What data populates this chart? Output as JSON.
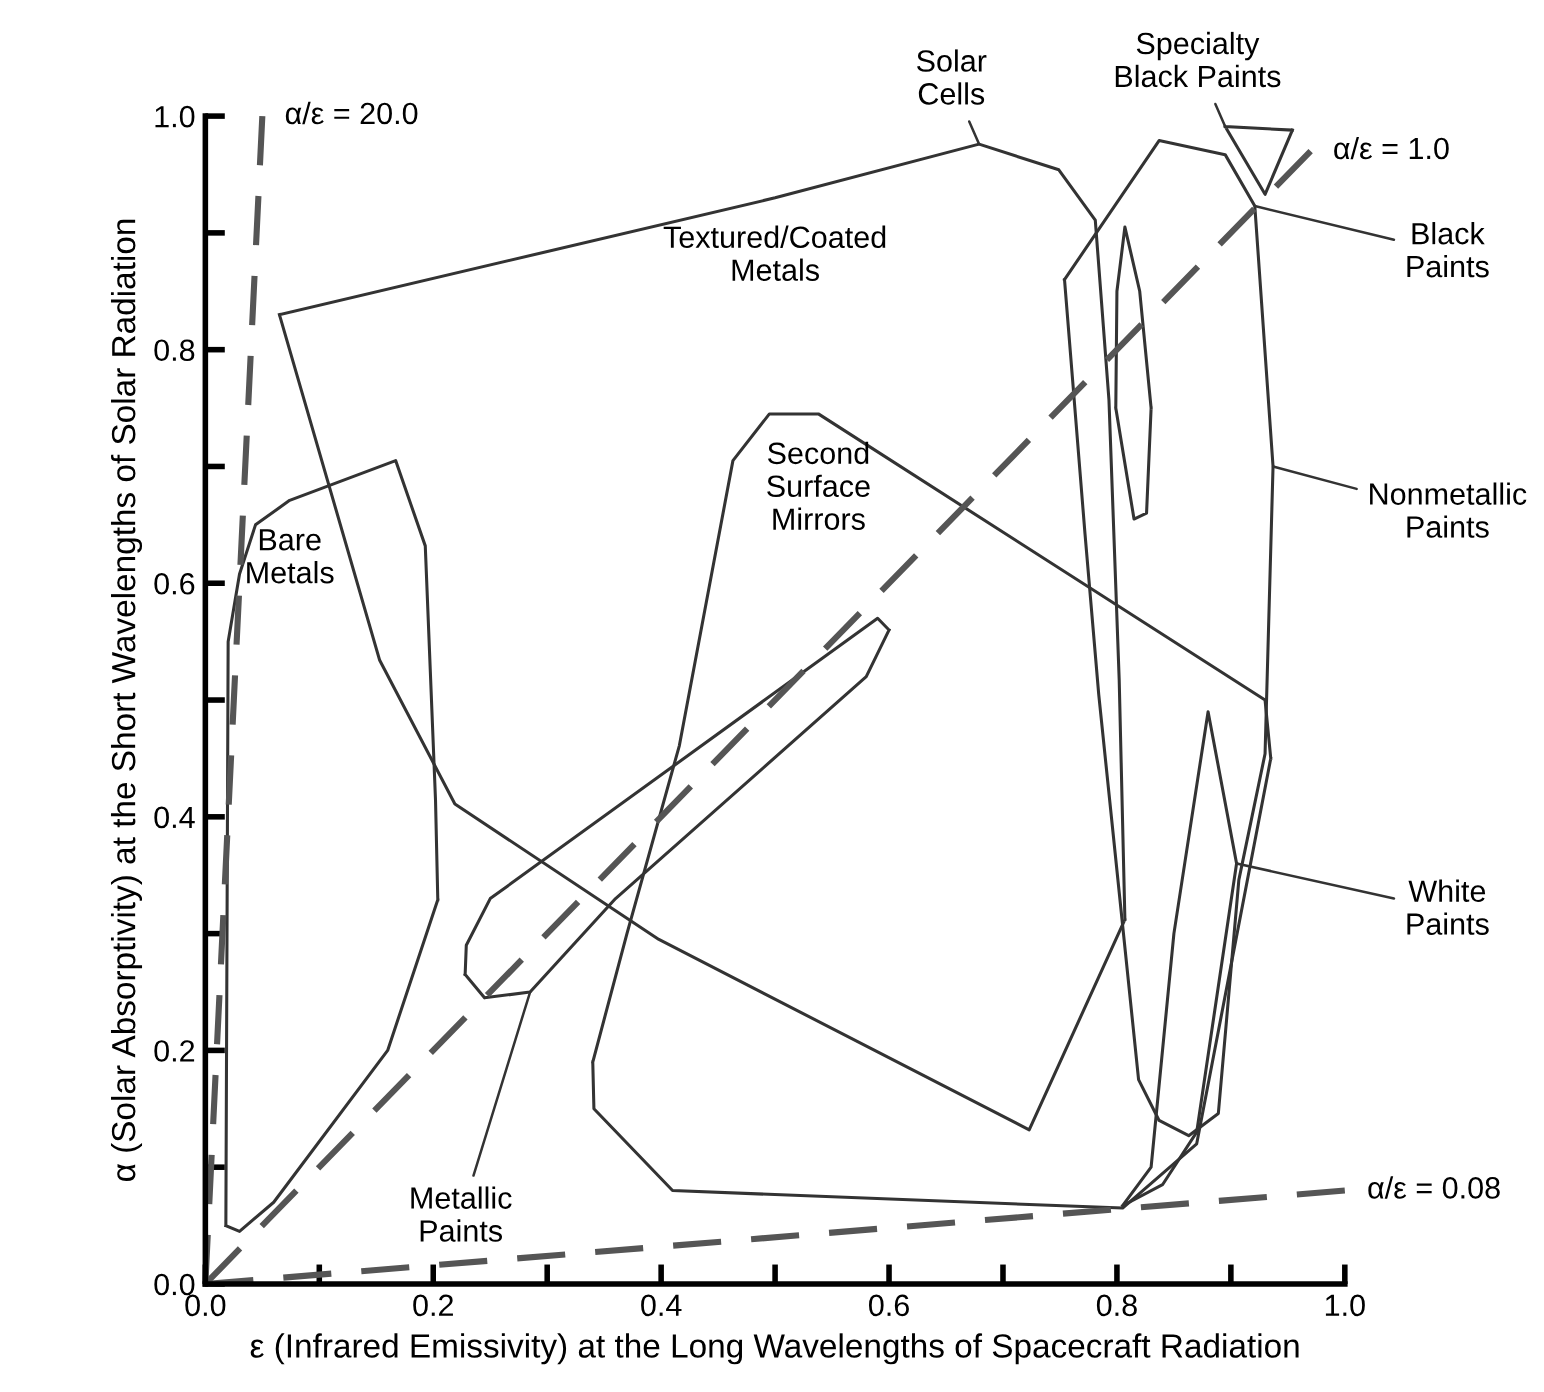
{
  "chart_data": {
    "type": "line",
    "xlabel": "ε (Infrared Emissivity) at the Long Wavelengths of Spacecraft Radiation",
    "ylabel": "α (Solar Absorptivity) at the Short Wavelengths of Solar Radiation",
    "xlim": [
      0,
      1.0
    ],
    "ylim": [
      0,
      1.0
    ],
    "xticks": [
      {
        "value": 0,
        "label": "0.0"
      },
      {
        "value": 0.1,
        "label": null
      },
      0.2,
      {
        "value": 0.3,
        "label": null
      },
      0.4,
      {
        "value": 0.5,
        "label": null
      },
      0.6,
      {
        "value": 0.7,
        "label": null
      },
      0.8,
      {
        "value": 0.9,
        "label": null
      },
      {
        "value": 1.0,
        "label": "1.0"
      }
    ],
    "yticks": [
      {
        "value": 0,
        "label": "0.0"
      },
      {
        "value": 0.1,
        "label": null
      },
      0.2,
      {
        "value": 0.3,
        "label": null
      },
      0.4,
      {
        "value": 0.5,
        "label": null
      },
      0.6,
      {
        "value": 0.7,
        "label": null
      },
      0.8,
      {
        "value": 0.9,
        "label": null
      },
      {
        "value": 1.0,
        "label": "1.0"
      }
    ],
    "grid": false,
    "legend": false,
    "marker": "none",
    "line_style": "solid",
    "series": [
      {
        "color": "#333333",
        "x": [
          0.065,
          0.5,
          0.679,
          0.749,
          0.781,
          0.793,
          0.802,
          0.807,
          null,
          0.065,
          0.153,
          0.219,
          0.398,
          0.723,
          0.807
        ],
        "values": [
          0.83,
          0.93,
          0.976,
          0.954,
          0.911,
          0.757,
          0.517,
          0.312,
          null,
          0.83,
          0.534,
          0.411,
          0.295,
          0.132,
          0.312
        ]
      },
      {
        "color": "#333333",
        "x": [
          0.018,
          0.02,
          0.03,
          0.044,
          0.074,
          0.167,
          0.193,
          0.202,
          0.204,
          null,
          0.018,
          0.03,
          0.06,
          0.16,
          0.204
        ],
        "values": [
          0.05,
          0.55,
          0.608,
          0.65,
          0.671,
          0.705,
          0.632,
          0.414,
          0.329,
          null,
          0.05,
          0.045,
          0.07,
          0.2,
          0.329
        ]
      },
      {
        "color": "#333333",
        "x": [
          0.34,
          0.37,
          0.416,
          0.463,
          0.495,
          0.538,
          0.93,
          0.935,
          null,
          0.34,
          0.341,
          0.41,
          0.805,
          0.87,
          0.935
        ],
        "values": [
          0.19,
          0.3,
          0.461,
          0.705,
          0.745,
          0.745,
          0.5,
          0.45,
          null,
          0.19,
          0.15,
          0.08,
          0.065,
          0.12,
          0.45
        ]
      },
      {
        "color": "#333333",
        "x": [
          0.228,
          0.229,
          0.25,
          0.59,
          0.6,
          null,
          0.228,
          0.245,
          0.285,
          0.36,
          0.58,
          0.6
        ],
        "values": [
          0.265,
          0.29,
          0.33,
          0.57,
          0.56,
          null,
          0.265,
          0.245,
          0.25,
          0.33,
          0.52,
          0.56
        ]
      },
      {
        "color": "#333333",
        "x": [
          0.799,
          0.8,
          0.807,
          0.82,
          0.83,
          null,
          0.799,
          0.815,
          0.826,
          0.83
        ],
        "values": [
          0.75,
          0.85,
          0.905,
          0.85,
          0.75,
          null,
          0.75,
          0.655,
          0.66,
          0.75
        ]
      },
      {
        "color": "#333333",
        "x": [
          0.754,
          0.837,
          0.895,
          0.921,
          0.937,
          null,
          0.754,
          0.772,
          0.784,
          0.819,
          0.837,
          0.863,
          0.889,
          0.907,
          0.93,
          0.937
        ],
        "values": [
          0.86,
          0.979,
          0.967,
          0.923,
          0.7,
          null,
          0.86,
          0.642,
          0.505,
          0.175,
          0.14,
          0.127,
          0.146,
          0.346,
          0.454,
          0.7
        ]
      },
      {
        "color": "#333333",
        "x": [
          0.805,
          0.83,
          0.85,
          0.88,
          0.905,
          null,
          0.805,
          0.84,
          0.87,
          0.905
        ],
        "values": [
          0.067,
          0.1,
          0.3,
          0.49,
          0.36,
          null,
          0.067,
          0.085,
          0.13,
          0.36
        ]
      },
      {
        "color": "#333333",
        "x": [
          0.895,
          0.954,
          null,
          0.895,
          0.93,
          0.954
        ],
        "values": [
          0.991,
          0.988,
          null,
          0.991,
          0.933,
          0.988
        ]
      },
      {
        "name": "α/ε = 20.0",
        "color": "#555555",
        "line_style": "dashed",
        "x": [
          0,
          0.05
        ],
        "values": [
          0,
          1.0
        ]
      },
      {
        "name": "α/ε = 1.0",
        "color": "#555555",
        "line_style": "dashed",
        "x": [
          0,
          0.97
        ],
        "values": [
          0,
          0.97
        ]
      },
      {
        "name": "α/ε = 0.08",
        "color": "#555555",
        "line_style": "dashed",
        "x": [
          0,
          1.0
        ],
        "values": [
          0,
          0.08
        ]
      }
    ],
    "annotations": [
      {
        "text": "Textured/Coated\nMetals",
        "x": 0.5,
        "y": 0.93
      },
      {
        "text": "Bare\nMetals",
        "x": 0.074,
        "y": 0.671
      },
      {
        "text": "Second\nSurface\nMirrors",
        "x": 0.538,
        "y": 0.745
      },
      {
        "text": "Metallic\nPaints",
        "x": 0.285,
        "y": 0.25
      },
      {
        "text": "White\nPaints",
        "x": 0.905,
        "y": 0.36
      },
      {
        "text": "Nonmetallic\nPaints",
        "x": 0.937,
        "y": 0.7
      },
      {
        "text": "Black\nPaints",
        "x": 0.921,
        "y": 0.923
      },
      {
        "text": "Specialty\nBlack Paints",
        "x": 0.895,
        "y": 0.991
      },
      {
        "text": "Solar\nCells",
        "x": 0.679,
        "y": 0.976
      }
    ]
  }
}
